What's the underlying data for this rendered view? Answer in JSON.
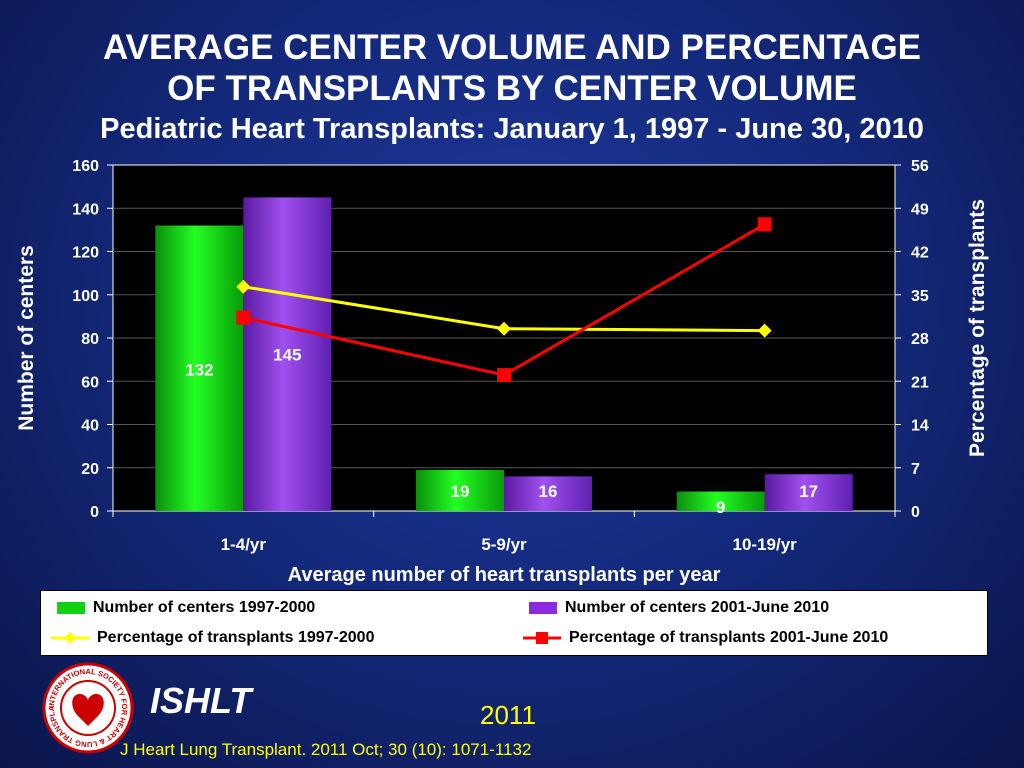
{
  "colors": {
    "background": "#142a7e",
    "plot_background": "#000000",
    "bar_1997": "#12d012",
    "bar_2001": "#8a2be2",
    "line_1997": "#ffff00",
    "line_2001": "#ff0000",
    "text": "#ffffff",
    "footer_text": "#ffff00"
  },
  "chart_data": {
    "type": "bar",
    "title": "AVERAGE CENTER VOLUME AND PERCENTAGE OF TRANSPLANTS BY CENTER VOLUME",
    "title_lines": [
      "AVERAGE CENTER VOLUME AND PERCENTAGE",
      "OF TRANSPLANTS BY CENTER VOLUME"
    ],
    "subtitle": "Pediatric Heart Transplants: January 1, 1997 - June 30, 2010",
    "xlabel": "Average number of heart transplants per year",
    "ylabel": "Number of centers",
    "y2label": "Percentage of transplants",
    "categories": [
      "1-4/yr",
      "5-9/yr",
      "10-19/yr"
    ],
    "ylim": [
      0,
      160
    ],
    "yticks": [
      0,
      20,
      40,
      60,
      80,
      100,
      120,
      140,
      160
    ],
    "y2lim": [
      0,
      56
    ],
    "y2ticks": [
      0,
      7,
      14,
      21,
      28,
      35,
      42,
      49,
      56
    ],
    "grid": true,
    "legend_position": "bottom",
    "bar_series": [
      {
        "name": "Number of centers 1997-2000",
        "values": [
          132,
          19,
          9
        ],
        "data_labels": [
          "132",
          "19",
          "9"
        ]
      },
      {
        "name": "Number of centers 2001-June 2010",
        "values": [
          145,
          16,
          17
        ],
        "data_labels": [
          "145",
          "16",
          "17"
        ]
      }
    ],
    "line_series": [
      {
        "name": "Percentage of transplants 1997-2000",
        "values": [
          36.3,
          29.5,
          29.2
        ],
        "marker": "diamond"
      },
      {
        "name": "Percentage of transplants 2001-June 2010",
        "values": [
          31.3,
          22.0,
          46.4
        ],
        "marker": "square"
      }
    ]
  },
  "footer": {
    "logo_text": "INTERNATIONAL SOCIETY FOR HEART & LUNG TRANSPLANTATION",
    "org": "ISHLT",
    "year": "2011",
    "citation": "J Heart Lung Transplant. 2011 Oct; 30 (10): 1071-1132"
  }
}
